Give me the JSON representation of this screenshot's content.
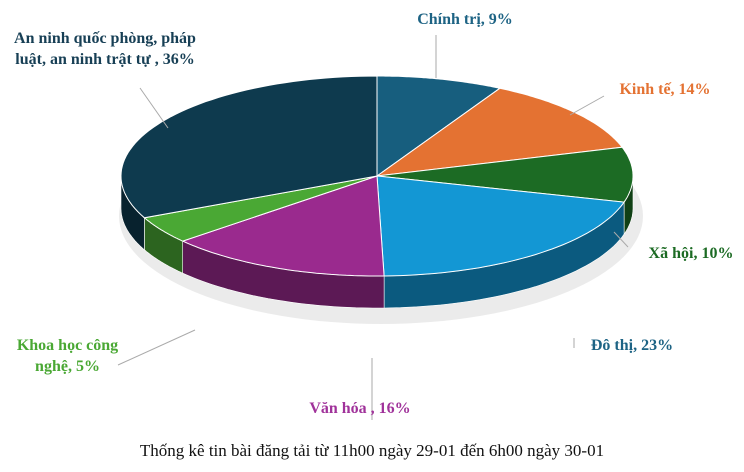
{
  "chart_data": {
    "type": "pie",
    "style": "3d",
    "title": "",
    "caption": "Thống kê tin bài đăng tải từ 11h00 ngày 29-01 đến 6h00 ngày 30-01",
    "slices": [
      {
        "label": "Chính trị, 9%",
        "name": "Chính trị",
        "value": 9,
        "color": "#175e7e"
      },
      {
        "label": "Kinh tế, 14%",
        "name": "Kinh tế",
        "value": 14,
        "color": "#e47232"
      },
      {
        "label": "Xã hội, 10%",
        "name": "Xã hội",
        "value": 10,
        "color": "#1c6b24"
      },
      {
        "label": "Đô thị, 23%",
        "name": "Đô thị",
        "value": 23,
        "color": "#1397d4"
      },
      {
        "label": "Văn hóa , 16%",
        "name": "Văn hóa",
        "value": 16,
        "color": "#9a2a8e"
      },
      {
        "label": "Khoa học công nghệ, 5%",
        "name": "Khoa học công nghệ",
        "value": 5,
        "color": "#4aa834"
      },
      {
        "label": "An ninh quốc phòng, pháp luật, an ninh trật tự , 36%",
        "name": "An ninh quốc phòng, pháp luật, an ninh trật tự",
        "value": 36,
        "color": "#0e3a4e"
      }
    ],
    "label_colors": [
      "#1d6384",
      "#e47232",
      "#1c6b24",
      "#1d6384",
      "#a0329a",
      "#4aa834",
      "#173f55"
    ],
    "legend": "none"
  }
}
